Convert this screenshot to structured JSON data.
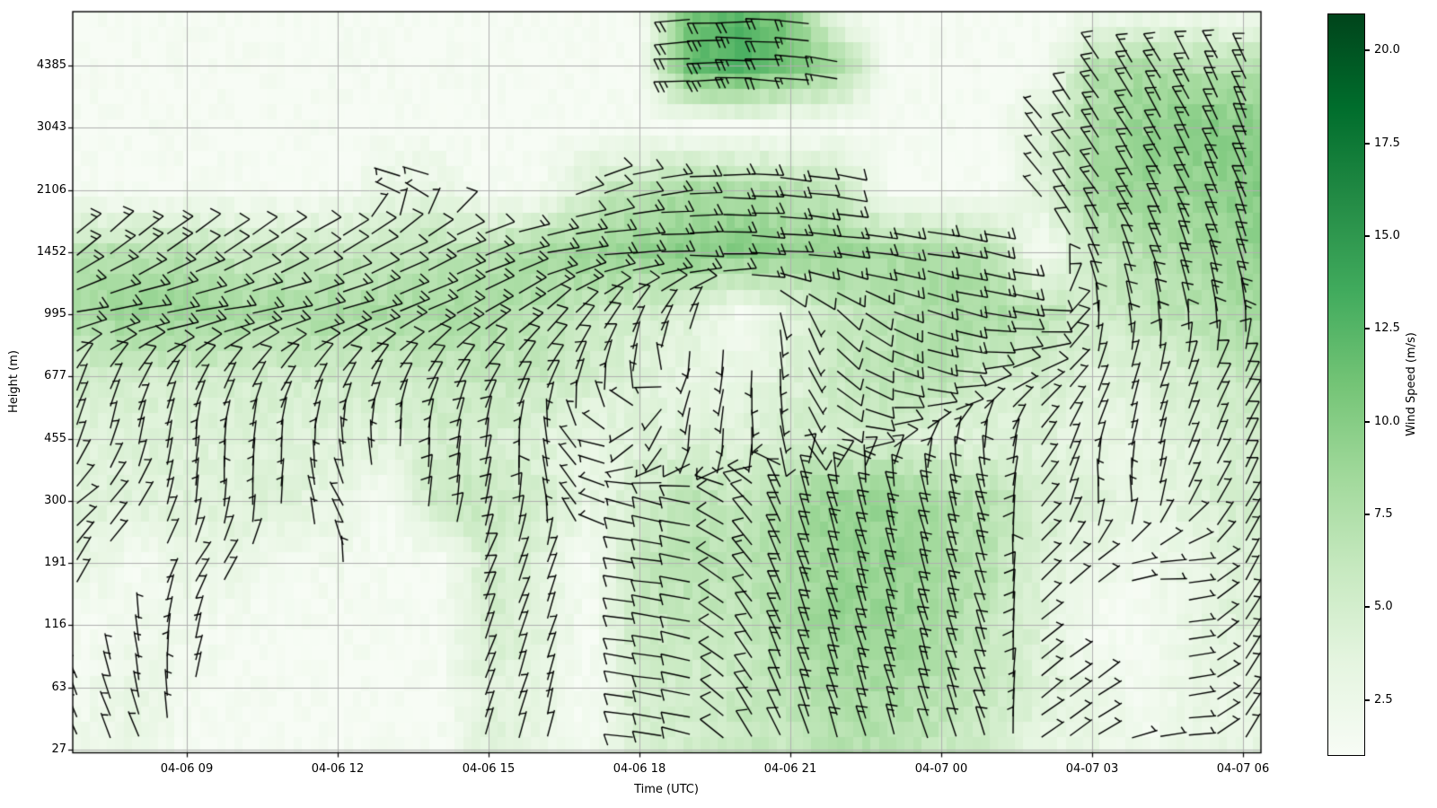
{
  "figure": {
    "background": "#ffffff"
  },
  "axes": {
    "xlabel": "Time (UTC)",
    "ylabel": "Height (m)",
    "x_tick_labels": [
      "04-06 09",
      "04-06 12",
      "04-06 15",
      "04-06 18",
      "04-06 21",
      "04-07 00",
      "04-07 03",
      "04-07 06"
    ],
    "x_tick_time_index": [
      2,
      5,
      8,
      11,
      14,
      17,
      20,
      23
    ],
    "y_tick_labels": [
      "27",
      "63",
      "116",
      "191",
      "300",
      "455",
      "677",
      "995",
      "1452",
      "2106",
      "3043",
      "4385"
    ],
    "grid_color": "#b0b0b0",
    "spine_color": "#000000"
  },
  "colorbar": {
    "label": "Wind Speed (m/s)",
    "tick_values": [
      2.5,
      5,
      7.5,
      10,
      12.5,
      15,
      17.5,
      20
    ],
    "tick_labels": [
      "2.5",
      "5.0",
      "7.5",
      "10.0",
      "12.5",
      "15.0",
      "17.5",
      "20.0"
    ],
    "vmin": 1.0,
    "vmax": 21.0,
    "colormap": "Greens",
    "stops": [
      "#f7fcf5",
      "#e5f5e0",
      "#c7e9c0",
      "#a1d99b",
      "#74c476",
      "#41ab5d",
      "#238b45",
      "#006d2c",
      "#00441b"
    ]
  },
  "chart_data": {
    "type": "heatmap",
    "subtype": "time-height wind barb cross-section (shading = wind speed, barbs = wind)",
    "title": "",
    "xlabel": "Time (UTC)",
    "ylabel": "Height (m)",
    "x_times": [
      "04-06 07",
      "04-06 08",
      "04-06 09",
      "04-06 10",
      "04-06 11",
      "04-06 12",
      "04-06 13",
      "04-06 14",
      "04-06 15",
      "04-06 16",
      "04-06 17",
      "04-06 18",
      "04-06 19",
      "04-06 20",
      "04-06 21",
      "04-06 22",
      "04-06 23",
      "04-07 00",
      "04-07 01",
      "04-07 02",
      "04-07 03",
      "04-07 04",
      "04-07 05",
      "04-07 06"
    ],
    "y_heights_m": [
      27,
      63,
      116,
      191,
      300,
      455,
      677,
      995,
      1452,
      2106,
      3043,
      4385,
      5800
    ],
    "units": {
      "speed": "m/s",
      "direction": "deg; staff angle from grid point toward feathered end, 0=east, CCW positive",
      "note": "values estimated from plot; null = no data (masked)"
    },
    "field": [
      [
        [
          2,
          115
        ],
        [
          3,
          115
        ],
        null,
        null,
        null,
        null,
        null,
        null,
        [
          4,
          72
        ],
        [
          3,
          78
        ],
        null,
        [
          5,
          172
        ],
        [
          5,
          170
        ],
        [
          6,
          125
        ],
        [
          6,
          112
        ],
        [
          7,
          108
        ],
        [
          7,
          106
        ],
        [
          6,
          108
        ],
        [
          5,
          110
        ],
        [
          3,
          35
        ],
        [
          3,
          32
        ],
        [
          2,
          10
        ],
        [
          3,
          5
        ],
        [
          3,
          60
        ]
      ],
      [
        [
          2,
          112
        ],
        [
          3,
          100
        ],
        [
          2,
          80
        ],
        null,
        null,
        null,
        null,
        null,
        [
          4,
          70
        ],
        [
          3,
          75
        ],
        null,
        [
          5,
          172
        ],
        [
          5,
          170
        ],
        [
          6,
          128
        ],
        [
          7,
          110
        ],
        [
          8,
          107
        ],
        [
          8,
          106
        ],
        [
          7,
          107
        ],
        [
          6,
          110
        ],
        [
          4,
          38
        ],
        [
          3,
          35
        ],
        null,
        [
          3,
          8
        ],
        [
          3,
          55
        ]
      ],
      [
        null,
        [
          2,
          95
        ],
        [
          2,
          75
        ],
        null,
        null,
        null,
        null,
        null,
        [
          5,
          70
        ],
        [
          4,
          72
        ],
        null,
        [
          6,
          172
        ],
        [
          6,
          170
        ],
        [
          6,
          130
        ],
        [
          8,
          110
        ],
        [
          9,
          107
        ],
        [
          9,
          106
        ],
        [
          8,
          106
        ],
        [
          6,
          108
        ],
        [
          4,
          40
        ],
        null,
        null,
        [
          3,
          10
        ],
        [
          4,
          58
        ]
      ],
      [
        [
          3,
          58
        ],
        null,
        [
          3,
          58
        ],
        [
          3,
          58
        ],
        null,
        [
          2,
          95
        ],
        null,
        null,
        [
          5,
          68
        ],
        [
          4,
          70
        ],
        null,
        [
          6,
          173
        ],
        [
          7,
          171
        ],
        [
          7,
          135
        ],
        [
          8,
          110
        ],
        [
          9,
          107
        ],
        [
          9,
          105
        ],
        [
          8,
          105
        ],
        [
          7,
          106
        ],
        [
          4,
          45
        ],
        [
          3,
          40
        ],
        [
          2,
          0
        ],
        [
          3,
          5
        ],
        [
          4,
          60
        ]
      ],
      [
        [
          4,
          40
        ],
        [
          4,
          60
        ],
        [
          4,
          85
        ],
        [
          4,
          90
        ],
        [
          4,
          88
        ],
        [
          3,
          120
        ],
        null,
        [
          6,
          85
        ],
        [
          6,
          80
        ],
        [
          5,
          95
        ],
        [
          3,
          150
        ],
        [
          5,
          165
        ],
        [
          7,
          168
        ],
        [
          6,
          140
        ],
        [
          8,
          108
        ],
        [
          9,
          105
        ],
        [
          9,
          103
        ],
        [
          8,
          103
        ],
        [
          7,
          104
        ],
        [
          5,
          50
        ],
        [
          4,
          95
        ],
        [
          3,
          95
        ],
        [
          4,
          60
        ],
        [
          5,
          62
        ]
      ],
      [
        [
          4,
          75
        ],
        [
          4,
          80
        ],
        [
          4,
          85
        ],
        [
          4,
          85
        ],
        [
          4,
          85
        ],
        [
          4,
          90
        ],
        [
          4,
          92
        ],
        [
          5,
          85
        ],
        [
          5,
          82
        ],
        [
          4,
          95
        ],
        [
          3,
          140
        ],
        [
          4,
          -130
        ],
        [
          4,
          -95
        ],
        [
          4,
          -90
        ],
        [
          5,
          -75
        ],
        [
          5,
          -30
        ],
        [
          5,
          20
        ],
        [
          4,
          70
        ],
        [
          4,
          85
        ],
        [
          4,
          60
        ],
        [
          3,
          70
        ],
        [
          3,
          80
        ],
        [
          4,
          70
        ],
        [
          5,
          65
        ]
      ],
      [
        [
          5,
          65
        ],
        [
          5,
          62
        ],
        [
          5,
          60
        ],
        [
          5,
          60
        ],
        [
          5,
          58
        ],
        [
          5,
          60
        ],
        [
          5,
          62
        ],
        [
          6,
          60
        ],
        [
          6,
          58
        ],
        [
          6,
          60
        ],
        [
          5,
          75
        ],
        [
          4,
          90
        ],
        [
          3,
          -110
        ],
        [
          3,
          -95
        ],
        [
          4,
          -85
        ],
        [
          6,
          -35
        ],
        [
          7,
          -20
        ],
        [
          7,
          -12
        ],
        [
          5,
          20
        ],
        [
          5,
          30
        ],
        [
          4,
          65
        ],
        [
          4,
          75
        ],
        [
          5,
          68
        ],
        [
          6,
          60
        ]
      ],
      [
        [
          8,
          10
        ],
        [
          9,
          8
        ],
        [
          9,
          8
        ],
        [
          8,
          10
        ],
        [
          8,
          12
        ],
        [
          8,
          15
        ],
        [
          8,
          20
        ],
        [
          8,
          25
        ],
        [
          8,
          30
        ],
        [
          7,
          40
        ],
        [
          6,
          50
        ],
        [
          5,
          60
        ],
        [
          4,
          70
        ],
        null,
        [
          4,
          -85
        ],
        [
          6,
          -45
        ],
        [
          7,
          -25
        ],
        [
          8,
          -15
        ],
        [
          8,
          -10
        ],
        [
          7,
          -5
        ],
        [
          5,
          95
        ],
        [
          6,
          100
        ],
        [
          7,
          100
        ],
        [
          8,
          100
        ]
      ],
      [
        [
          7,
          40
        ],
        [
          7,
          38
        ],
        [
          7,
          36
        ],
        [
          6,
          34
        ],
        [
          6,
          32
        ],
        [
          6,
          30
        ],
        [
          6,
          28
        ],
        [
          7,
          25
        ],
        [
          7,
          20
        ],
        [
          8,
          12
        ],
        [
          9,
          6
        ],
        [
          9,
          2
        ],
        [
          10,
          0
        ],
        [
          10,
          -2
        ],
        [
          9,
          -4
        ],
        [
          9,
          -6
        ],
        [
          8,
          -8
        ],
        [
          8,
          -10
        ],
        [
          7,
          -12
        ],
        null,
        [
          6,
          115
        ],
        [
          7,
          112
        ],
        [
          8,
          110
        ],
        [
          9,
          108
        ]
      ],
      [
        null,
        null,
        null,
        null,
        null,
        null,
        [
          3,
          165
        ],
        [
          3,
          160
        ],
        null,
        null,
        [
          5,
          25
        ],
        [
          7,
          12
        ],
        [
          8,
          3
        ],
        [
          8,
          -2
        ],
        [
          7,
          -6
        ],
        [
          6,
          -10
        ],
        null,
        null,
        null,
        [
          4,
          130
        ],
        [
          8,
          125
        ],
        [
          9,
          120
        ],
        [
          9,
          116
        ],
        [
          10,
          112
        ]
      ],
      [
        null,
        null,
        null,
        null,
        null,
        null,
        null,
        null,
        null,
        null,
        null,
        null,
        null,
        null,
        null,
        null,
        null,
        null,
        null,
        [
          4,
          128
        ],
        [
          8,
          124
        ],
        [
          9,
          120
        ],
        [
          10,
          117
        ],
        [
          10,
          113
        ]
      ],
      [
        null,
        null,
        null,
        null,
        null,
        null,
        null,
        null,
        null,
        null,
        null,
        null,
        [
          12,
          183
        ],
        [
          13,
          180
        ],
        [
          11,
          176
        ],
        [
          8,
          172
        ],
        null,
        null,
        null,
        null,
        [
          7,
          124
        ],
        [
          8,
          122
        ],
        [
          7,
          118
        ],
        [
          7,
          115
        ]
      ],
      [
        null,
        null,
        null,
        null,
        null,
        null,
        null,
        null,
        null,
        null,
        null,
        null,
        [
          11,
          184
        ],
        [
          12,
          181
        ],
        [
          10,
          177
        ],
        null,
        null,
        null,
        null,
        null,
        null,
        null,
        null,
        null
      ]
    ]
  }
}
